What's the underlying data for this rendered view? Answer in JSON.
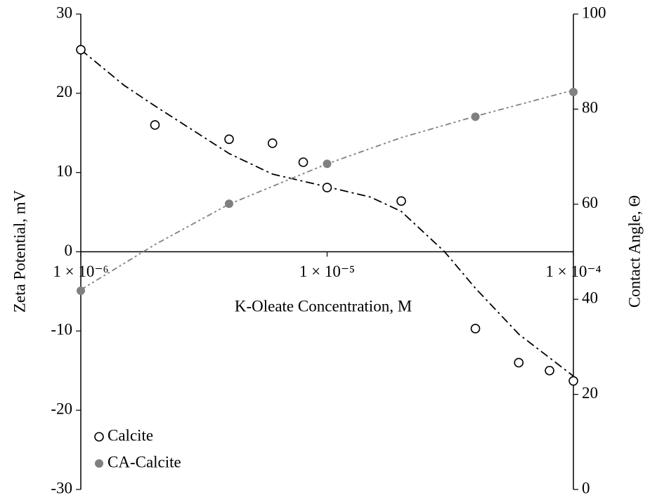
{
  "chart_data": {
    "type": "scatter",
    "x_label": "K-Oleate Concentration, M",
    "y_label": "Zeta Potential, mV",
    "y2_label": "Contact Angle, Θ",
    "xscale": "log",
    "xlim": [
      1e-06,
      0.0001
    ],
    "xticks": [
      {
        "value": 1e-06,
        "label": "1 × 10⁻⁶"
      },
      {
        "value": 1e-05,
        "label": "1 × 10⁻⁵"
      },
      {
        "value": 0.0001,
        "label": "1 × 10⁻⁴"
      }
    ],
    "ylim": [
      -30,
      30
    ],
    "yticks": [
      -30,
      -20,
      -10,
      0,
      10,
      20,
      30
    ],
    "y2lim": [
      0,
      100
    ],
    "y2ticks": [
      0,
      20,
      40,
      60,
      80,
      100
    ],
    "legend": "lower left",
    "series": [
      {
        "name": "Calcite",
        "color": "#000000",
        "marker": "open-circle",
        "x": [
          1e-06,
          2e-06,
          4e-06,
          6e-06,
          8e-06,
          1e-05,
          2e-05,
          4e-05,
          6e-05,
          8e-05,
          0.0001
        ],
        "values": [
          25.5,
          16.0,
          14.2,
          13.7,
          11.3,
          8.1,
          6.4,
          -9.7,
          -14.0,
          -15.0,
          -16.3
        ]
      },
      {
        "name": "CA-Calcite",
        "color": "#808080",
        "marker": "filled-circle",
        "axis": "y2",
        "x": [
          1e-06,
          4e-06,
          1e-05,
          4e-05,
          0.0001
        ],
        "values": [
          41.8,
          60.1,
          68.5,
          78.4,
          83.6
        ]
      }
    ],
    "trendlines": [
      {
        "color": "#000000",
        "dash": "12 5 3 5",
        "x": [
          1e-06,
          1.5e-06,
          2e-06,
          3e-06,
          4e-06,
          6e-06,
          1e-05,
          1.5e-05,
          2e-05,
          3e-05,
          4e-05,
          6e-05,
          0.0001
        ],
        "values": [
          25.5,
          21.0,
          18.4,
          14.9,
          12.4,
          9.8,
          8.2,
          6.9,
          5.1,
          0,
          -4.6,
          -10.4,
          -15.7
        ]
      },
      {
        "color": "#808080",
        "dash": "8 4 3 4 3 4",
        "axis": "y2",
        "x": [
          1e-06,
          2e-06,
          4e-06,
          1e-05,
          2e-05,
          4e-05,
          0.0001
        ],
        "values": [
          42,
          51.5,
          60,
          68.5,
          74,
          78.5,
          84
        ]
      }
    ]
  }
}
